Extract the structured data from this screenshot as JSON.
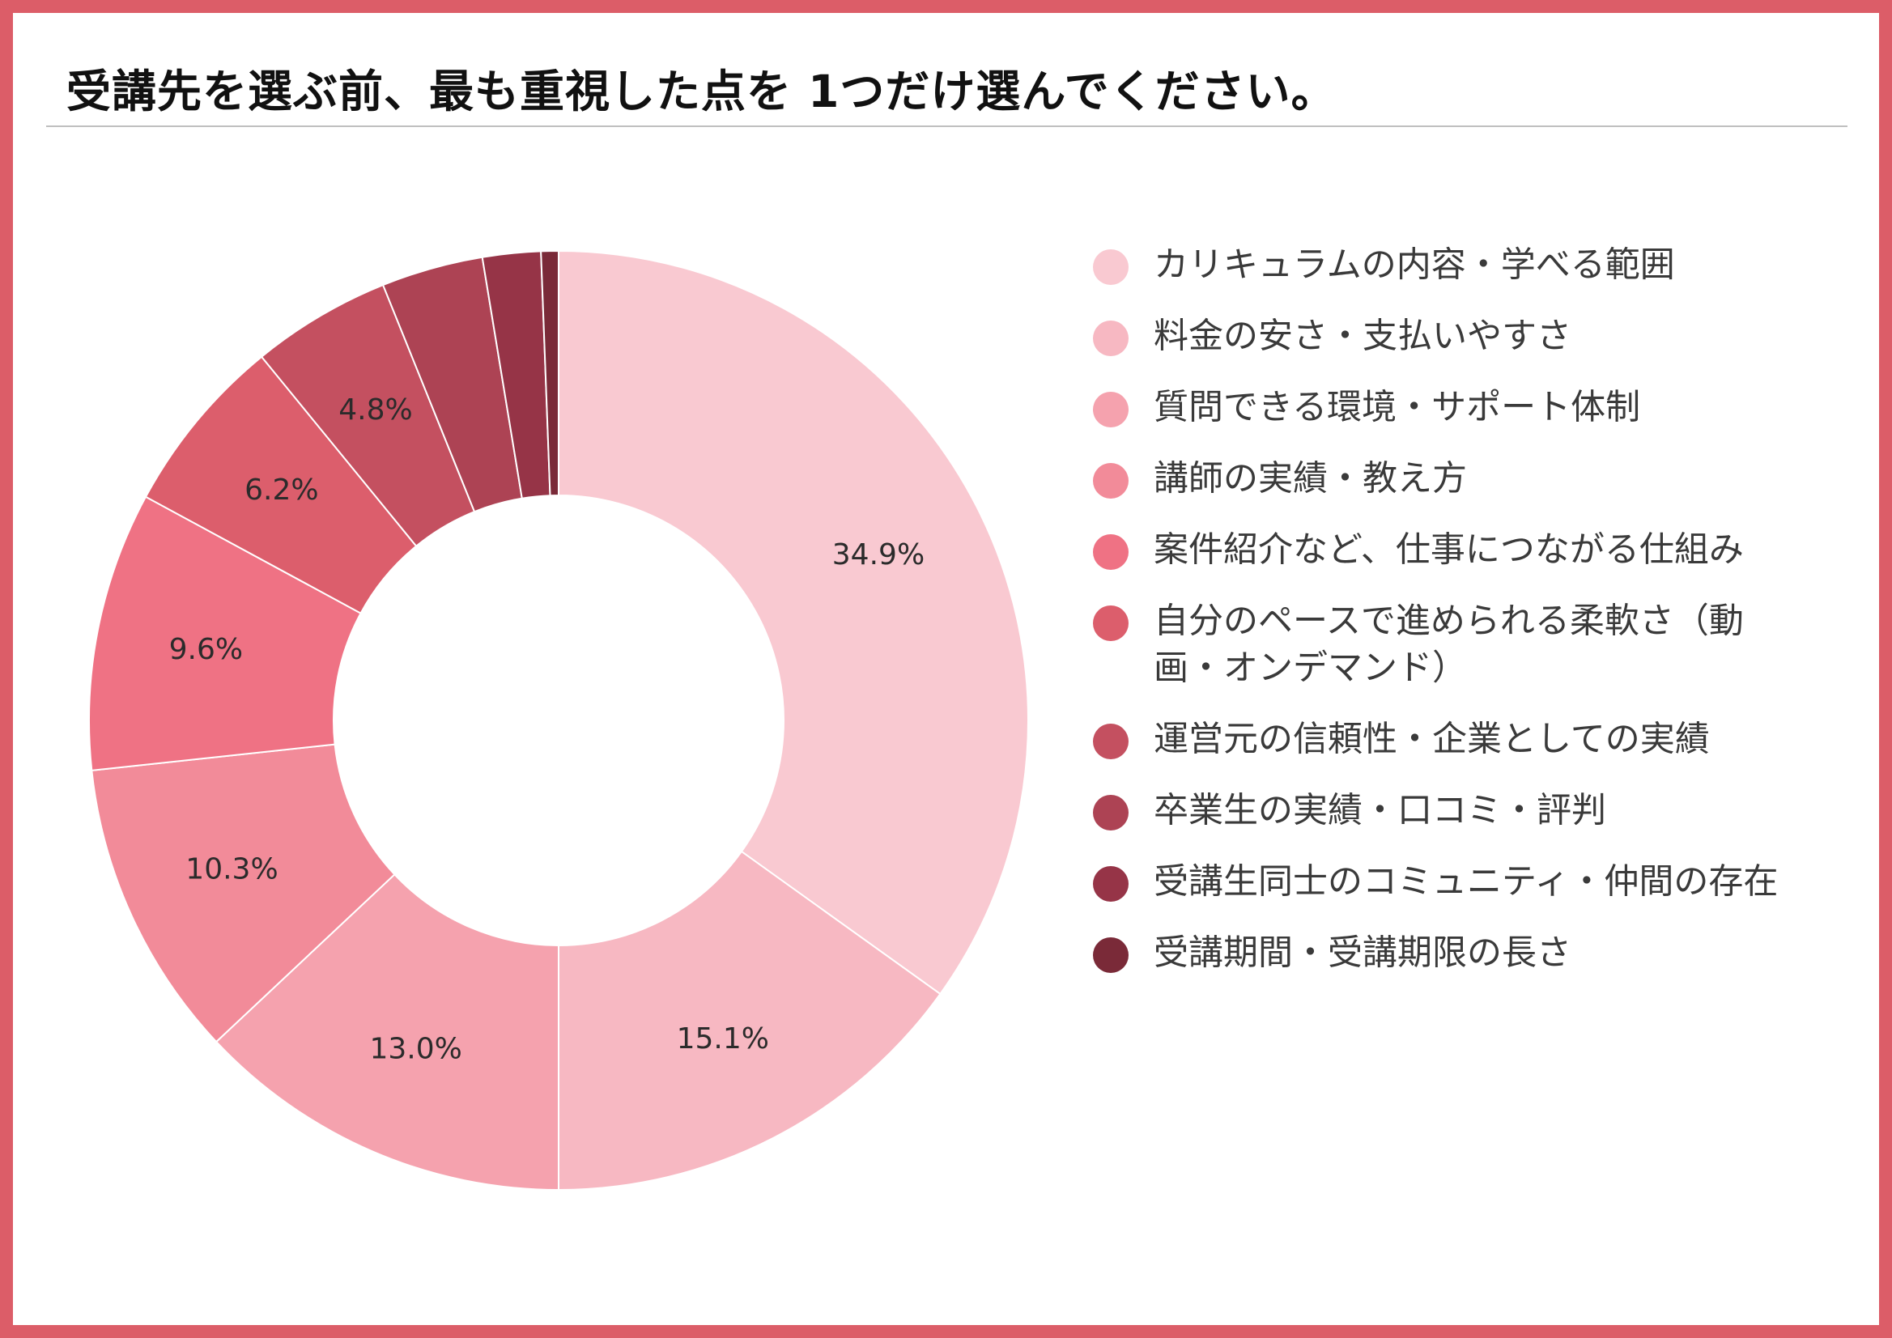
{
  "title": "受講先を選ぶ前、最も重視した点を 1つだけ選んでください。",
  "chart_data": {
    "type": "pie",
    "style": "donut",
    "categories": [
      "カリキュラムの内容・学べる範囲",
      "料金の安さ・支払いやすさ",
      "質問できる環境・サポート体制",
      "講師の実績・教え方",
      "案件紹介など、仕事につながる仕組み",
      "自分のペースで進められる柔軟さ（動画・オンデマンド）",
      "運営元の信頼性・企業としての実績",
      "卒業生の実績・口コミ・評判",
      "受講生同士のコミュニティ・仲間の存在",
      "受講期間・受講期限の長さ"
    ],
    "legend_lines": [
      [
        "カリキュラムの内容・学べる範囲"
      ],
      [
        "料金の安さ・支払いやすさ"
      ],
      [
        "質問できる環境・サポート体制"
      ],
      [
        "講師の実績・教え方"
      ],
      [
        "案件紹介など、仕事につながる仕組み"
      ],
      [
        "自分のペースで進められる柔軟さ（動",
        "画・オンデマンド）"
      ],
      [
        "運営元の信頼性・企業としての実績"
      ],
      [
        "卒業生の実績・口コミ・評判"
      ],
      [
        "受講生同士のコミュニティ・仲間の存在"
      ],
      [
        "受講期間・受講期限の長さ"
      ]
    ],
    "values": [
      34.9,
      15.1,
      13.0,
      10.3,
      9.6,
      6.2,
      4.8,
      3.5,
      2.0,
      0.6
    ],
    "data_labels": [
      "34.9%",
      "15.1%",
      "13.0%",
      "10.3%",
      "9.6%",
      "6.2%",
      "4.8%",
      "",
      "",
      ""
    ],
    "colors": [
      "#f9c9d1",
      "#f7b8c2",
      "#f5a2ae",
      "#f28b99",
      "#ef7284",
      "#dc5e6c",
      "#c45060",
      "#ad4354",
      "#963447",
      "#7a2a38"
    ],
    "legend_position": "right",
    "start_angle": "top",
    "direction": "clockwise"
  }
}
